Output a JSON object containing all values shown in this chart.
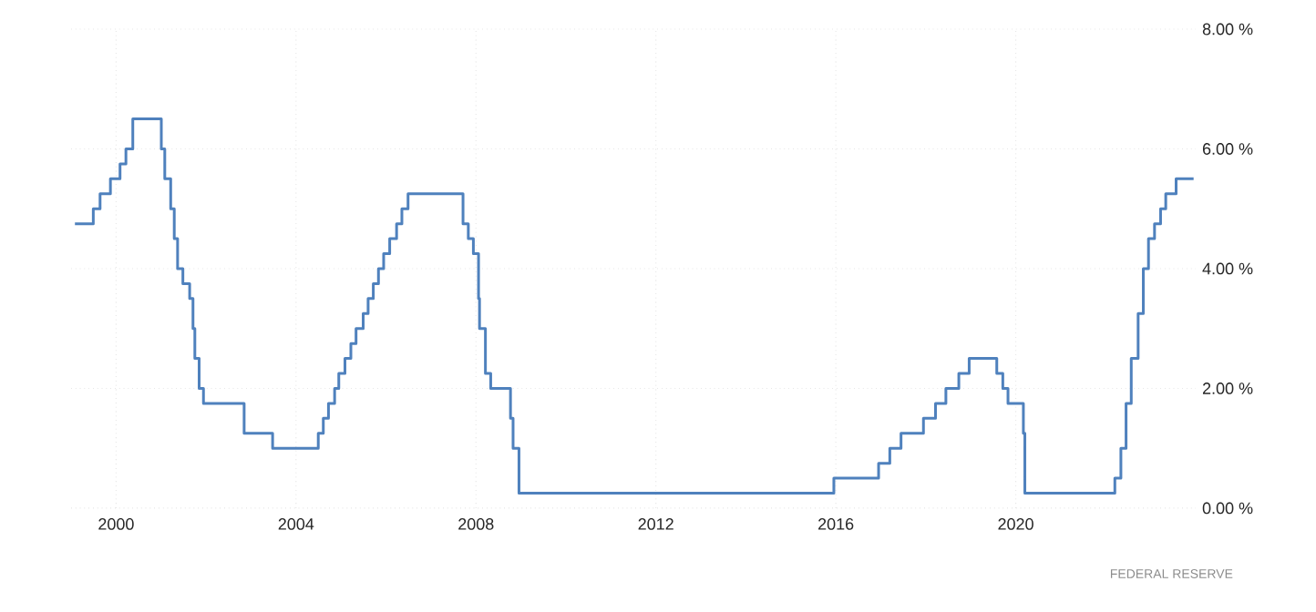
{
  "chart_data": {
    "type": "step",
    "color": "#4f81bd",
    "grid": true,
    "marker": "none",
    "line_style": "solid",
    "x": [
      "1999-02-01",
      "1999-06-30",
      "1999-08-24",
      "1999-11-16",
      "2000-02-02",
      "2000-03-21",
      "2000-05-16",
      "2001-01-03",
      "2001-01-31",
      "2001-03-20",
      "2001-04-18",
      "2001-05-15",
      "2001-06-27",
      "2001-08-21",
      "2001-09-17",
      "2001-10-02",
      "2001-11-06",
      "2001-12-11",
      "2002-11-06",
      "2003-06-25",
      "2004-06-30",
      "2004-08-10",
      "2004-09-21",
      "2004-11-10",
      "2004-12-14",
      "2005-02-02",
      "2005-03-22",
      "2005-05-03",
      "2005-06-30",
      "2005-08-09",
      "2005-09-20",
      "2005-11-01",
      "2005-12-13",
      "2006-01-31",
      "2006-03-28",
      "2006-05-10",
      "2006-06-29",
      "2007-09-18",
      "2007-10-31",
      "2007-12-11",
      "2008-01-22",
      "2008-01-30",
      "2008-03-18",
      "2008-04-30",
      "2008-10-08",
      "2008-10-29",
      "2008-12-16",
      "2015-12-16",
      "2016-12-14",
      "2017-03-15",
      "2017-06-14",
      "2017-12-13",
      "2018-03-21",
      "2018-06-13",
      "2018-09-26",
      "2018-12-19",
      "2019-07-31",
      "2019-09-18",
      "2019-10-30",
      "2020-03-03",
      "2020-03-15",
      "2022-03-16",
      "2022-05-04",
      "2022-06-15",
      "2022-07-27",
      "2022-09-21",
      "2022-11-02",
      "2022-12-14",
      "2023-02-01",
      "2023-03-22",
      "2023-05-03",
      "2023-07-26",
      "2023-12-15"
    ],
    "values": [
      4.75,
      5.0,
      5.25,
      5.5,
      5.75,
      6.0,
      6.5,
      6.0,
      5.5,
      5.0,
      4.5,
      4.0,
      3.75,
      3.5,
      3.0,
      2.5,
      2.0,
      1.75,
      1.25,
      1.0,
      1.25,
      1.5,
      1.75,
      2.0,
      2.25,
      2.5,
      2.75,
      3.0,
      3.25,
      3.5,
      3.75,
      4.0,
      4.25,
      4.5,
      4.75,
      5.0,
      5.25,
      4.75,
      4.5,
      4.25,
      3.5,
      3.0,
      2.25,
      2.0,
      1.5,
      1.0,
      0.25,
      0.5,
      0.75,
      1.0,
      1.25,
      1.5,
      1.75,
      2.0,
      2.25,
      2.5,
      2.25,
      2.0,
      1.75,
      1.25,
      0.25,
      0.5,
      1.0,
      1.75,
      2.5,
      3.25,
      4.0,
      4.5,
      4.75,
      5.0,
      5.25,
      5.5,
      5.5
    ],
    "xlim": [
      "1999-01-01",
      "2024-01-01"
    ],
    "xticks": [
      {
        "value": "2000",
        "label": "2000"
      },
      {
        "value": "2004",
        "label": "2004"
      },
      {
        "value": "2008",
        "label": "2008"
      },
      {
        "value": "2012",
        "label": "2012"
      },
      {
        "value": "2016",
        "label": "2016"
      },
      {
        "value": "2020",
        "label": "2020"
      }
    ],
    "ylim": [
      0,
      8
    ],
    "yticks": [
      {
        "value": 0,
        "label": "0.00 %"
      },
      {
        "value": 2,
        "label": "2.00 %"
      },
      {
        "value": 4,
        "label": "4.00 %"
      },
      {
        "value": 6,
        "label": "6.00 %"
      },
      {
        "value": 8,
        "label": "8.00 %"
      }
    ],
    "annotations": [
      "FEDERAL RESERVE"
    ]
  }
}
